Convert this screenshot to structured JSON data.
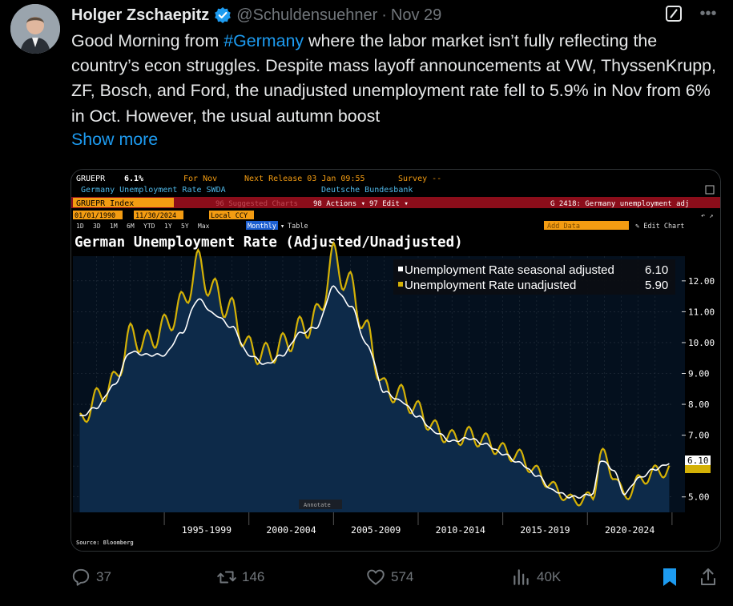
{
  "tweet": {
    "author_name": "Holger Zschaepitz",
    "handle": "@Schuldensuehner",
    "separator": "·",
    "date": "Nov 29",
    "text_before_tag": "Good Morning from ",
    "hashtag": "#Germany",
    "text_after_tag": " where the labor market isn’t fully reflecting the country’s econ struggles. Despite mass layoff announcements at VW, ThyssenKrupp, ZF, Bosch, and Ford, the unadjusted unemployment rate fell to 5.9% in Nov from 6% in Oct. However, the usual autumn boost",
    "show_more": "Show more"
  },
  "icons": {
    "verified": "verified-badge-icon",
    "grok": "grok-icon",
    "more": "more-icon",
    "reply": "reply-icon",
    "retweet": "retweet-icon",
    "like": "like-icon",
    "views": "views-icon",
    "bookmark": "bookmark-icon",
    "share": "share-icon"
  },
  "colors": {
    "accent": "#1d9bf0",
    "adjusted_series": "#ffffff",
    "unadjusted_series": "#d4b106",
    "terminal_orange": "#f39c12",
    "terminal_red_bar": "#8b0d1a"
  },
  "bloomberg": {
    "ticker": "GRUEPR",
    "value": "6.1%",
    "for_label": "For Nov",
    "next_release": "Next Release 03 Jan 09:55",
    "survey": "Survey --",
    "series_name": "Germany Unemployment Rate SWDA",
    "source_org": "Deutsche Bundesbank",
    "index_field": "GRUEPR Index",
    "suggested_charts": "96 Suggested Charts",
    "actions_menu": "98 Actions ▾",
    "edit_menu": "97 Edit ▾",
    "chart_ref": "G 2418: Germany unemployment adj",
    "start_date": "01/01/1990",
    "end_date": "11/30/2024",
    "currency": "Local CCY",
    "ranges": [
      "1D",
      "3D",
      "1M",
      "6M",
      "YTD",
      "1Y",
      "5Y",
      "Max"
    ],
    "frequency": "Monthly ▾",
    "table_button": "Table",
    "add_data": "Add Data",
    "edit_chart": "✎ Edit Chart",
    "annotate": "Annotate",
    "source": "Source: Bloomberg"
  },
  "chart_data": {
    "type": "line",
    "title": "German Unemployment Rate (Adjusted/Unadjusted)",
    "xlabel": "",
    "ylabel": "",
    "x_ticks": [
      "1995-1999",
      "2000-2004",
      "2005-2009",
      "2010-2014",
      "2015-2019",
      "2020-2024"
    ],
    "ylim": [
      4.5,
      12.8
    ],
    "y_ticks": [
      "12.00",
      "11.00",
      "10.00",
      "9.00",
      "8.00",
      "7.00",
      "5.00"
    ],
    "legend": [
      {
        "name": "Unemployment Rate seasonal adjusted",
        "last": "6.10"
      },
      {
        "name": "Unemployment Rate unadjusted",
        "last": "5.90"
      }
    ],
    "legend_position": "top-right",
    "last_value_label": "6.10",
    "x": [
      1990.0,
      1991.0,
      1992.0,
      1993.0,
      1994.0,
      1995.0,
      1996.0,
      1997.0,
      1998.0,
      1999.0,
      2000.0,
      2001.0,
      2002.0,
      2003.0,
      2004.0,
      2005.0,
      2006.0,
      2007.0,
      2008.0,
      2009.0,
      2010.0,
      2011.0,
      2012.0,
      2013.0,
      2014.0,
      2015.0,
      2016.0,
      2017.0,
      2018.0,
      2019.0,
      2019.5,
      2020.3,
      2020.8,
      2021.5,
      2022.2,
      2023.0,
      2024.0,
      2024.9
    ],
    "series": [
      {
        "name": "Unemployment Rate seasonal adjusted",
        "values": [
          7.6,
          7.9,
          8.6,
          9.7,
          9.6,
          9.6,
          10.3,
          11.4,
          10.9,
          10.5,
          9.6,
          9.3,
          9.6,
          10.3,
          10.5,
          11.8,
          11.2,
          9.9,
          8.4,
          8.1,
          7.6,
          7.1,
          6.8,
          6.9,
          6.7,
          6.4,
          6.1,
          5.7,
          5.2,
          5.0,
          5.0,
          5.1,
          6.2,
          5.9,
          5.1,
          5.6,
          5.9,
          6.1
        ]
      },
      {
        "name": "Unemployment Rate unadjusted",
        "values": [
          7.4,
          8.2,
          8.7,
          10.2,
          10.0,
          10.5,
          11.2,
          12.5,
          11.6,
          11.0,
          9.8,
          9.6,
          9.9,
          10.4,
          10.8,
          12.7,
          11.8,
          10.3,
          8.5,
          8.3,
          7.8,
          7.2,
          6.9,
          7.0,
          6.8,
          6.5,
          6.3,
          5.8,
          5.3,
          4.9,
          4.9,
          5.0,
          6.4,
          5.8,
          5.0,
          5.5,
          5.8,
          5.9
        ]
      }
    ]
  },
  "actions": {
    "replies": "37",
    "retweets": "146",
    "likes": "574",
    "views": "40K"
  }
}
